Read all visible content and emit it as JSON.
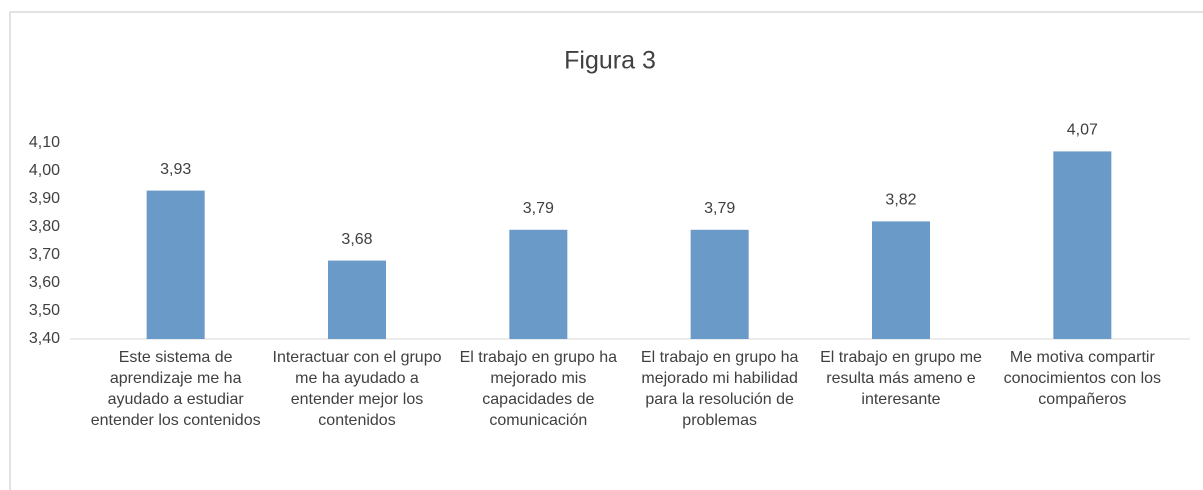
{
  "chart_data": {
    "type": "bar",
    "title": "Figura 3",
    "categories": [
      "Este sistema de aprendizaje me ha ayudado a estudiar entender los contenidos",
      "Interactuar con el grupo me ha ayudado a entender mejor los contenidos",
      "El trabajo en grupo ha mejorado mis capacidades de comunicación",
      "El trabajo en grupo ha mejorado mi habilidad para la resolución de problemas",
      "El trabajo en grupo me resulta más ameno e interesante",
      "Me motiva compartir conocimientos con los compañeros"
    ],
    "values": [
      3.93,
      3.68,
      3.79,
      3.79,
      3.82,
      4.07
    ],
    "value_labels": [
      "3,93",
      "3,68",
      "3,79",
      "3,79",
      "3,82",
      "4,07"
    ],
    "color": "#6a9ac7",
    "ylim": [
      3.4,
      4.1
    ],
    "yticks": [
      {
        "value": 3.4,
        "label": "3,40"
      },
      {
        "value": 3.5,
        "label": "3,50"
      },
      {
        "value": 3.6,
        "label": "3,60"
      },
      {
        "value": 3.7,
        "label": "3,70"
      },
      {
        "value": 3.8,
        "label": "3,80"
      },
      {
        "value": 3.9,
        "label": "3,90"
      },
      {
        "value": 4.0,
        "label": "4,00"
      },
      {
        "value": 4.1,
        "label": "4,10"
      }
    ],
    "grid": false
  }
}
